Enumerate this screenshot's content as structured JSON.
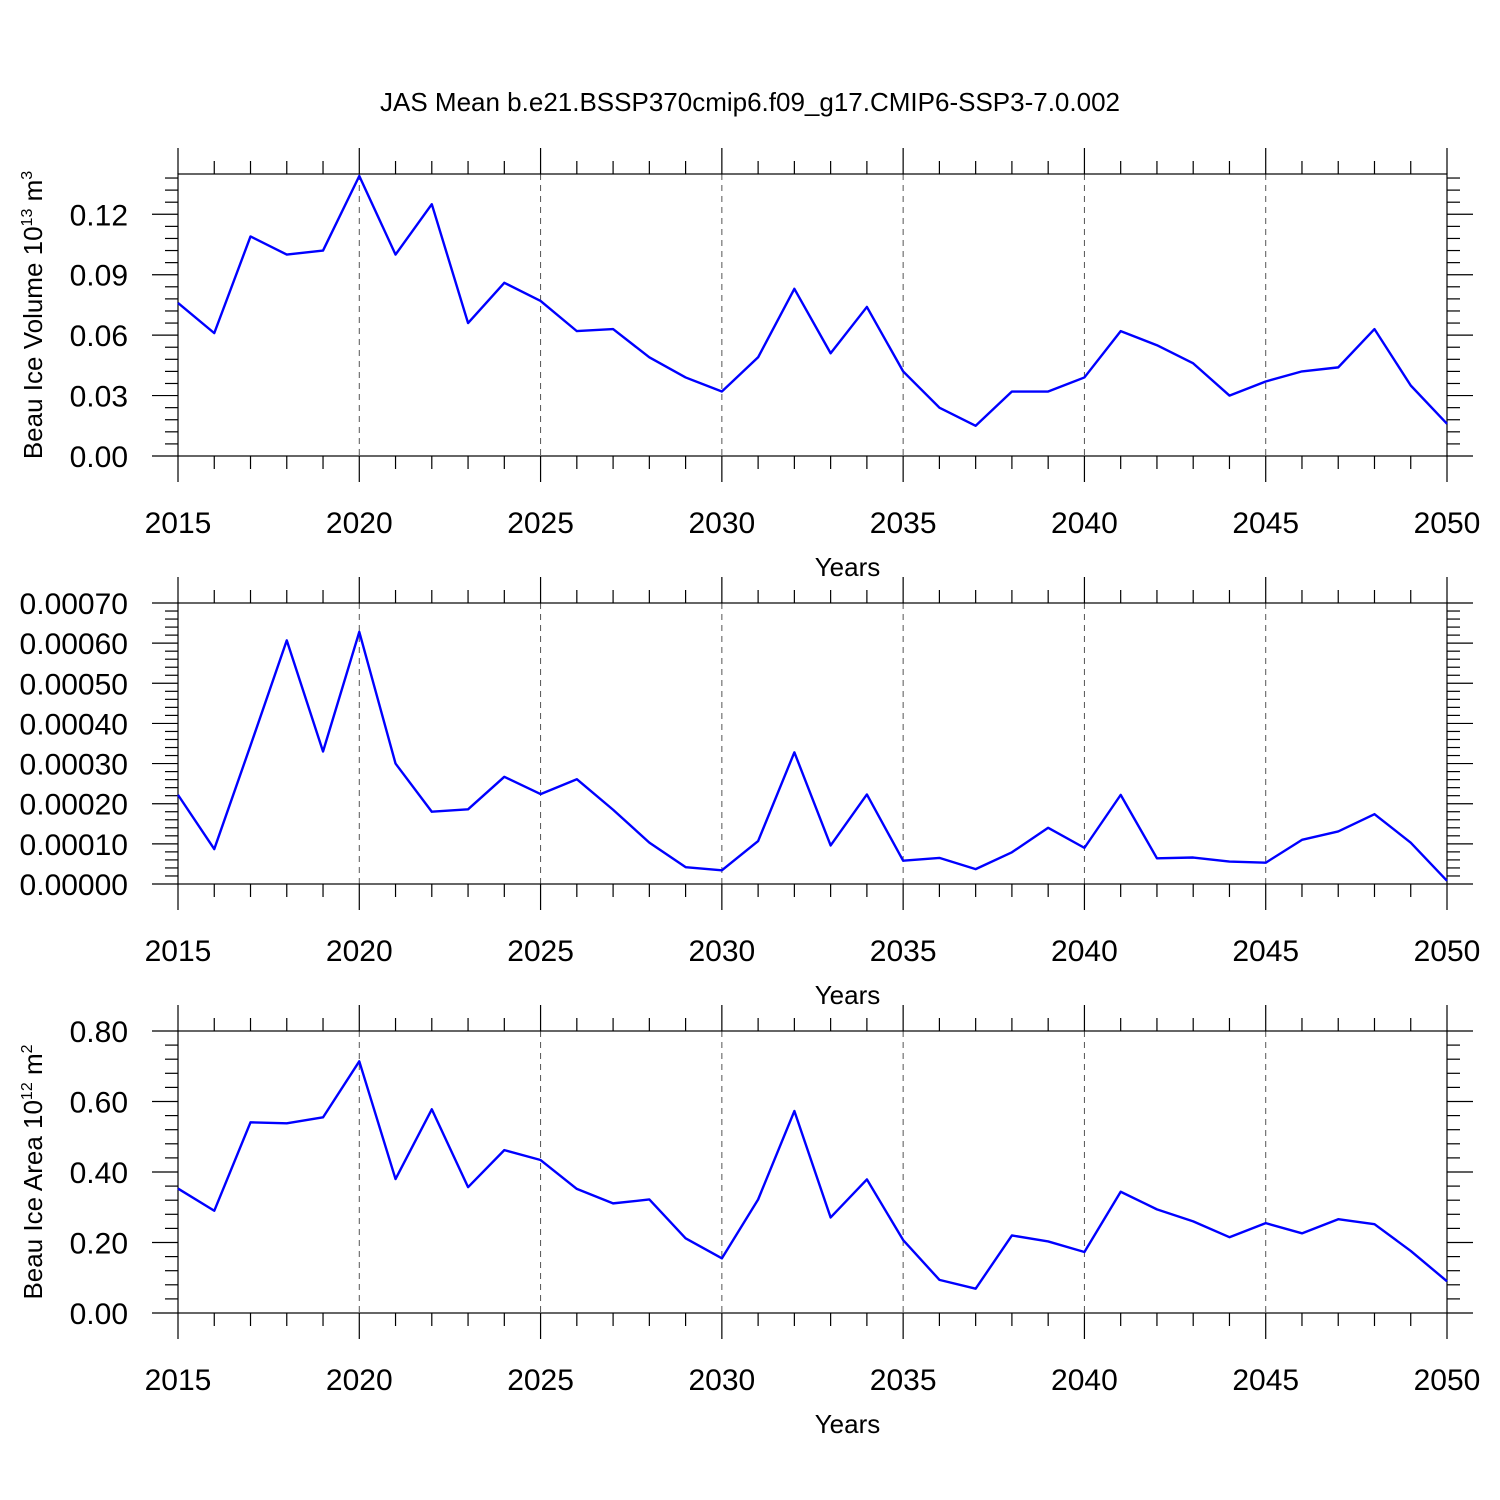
{
  "title": "JAS Mean b.e21.BSSP370cmip6.f09_g17.CMIP6-SSP3-7.0.002",
  "colors": {
    "line": "#0000ff",
    "axis": "#000000",
    "grid": "#555555"
  },
  "chart_data": [
    {
      "type": "line",
      "ylabel_main": "Beau Ice Volume 10",
      "ylabel_exp": "13",
      "ylabel_unit": " m",
      "ylabel_unit_exp": "3",
      "xlabel": "Years",
      "xlim": [
        2015,
        2050
      ],
      "ylim": [
        0,
        0.14
      ],
      "xticks": [
        2015,
        2020,
        2025,
        2030,
        2035,
        2040,
        2045,
        2050
      ],
      "xtick_labels": [
        "2015",
        "2020",
        "2025",
        "2030",
        "2035",
        "2040",
        "2045",
        "2050"
      ],
      "yticks": [
        0,
        0.03,
        0.06,
        0.09,
        0.12
      ],
      "ytick_labels": [
        "0.00",
        "0.03",
        "0.06",
        "0.09",
        "0.12"
      ],
      "grid": "vertical dashed",
      "x": [
        2015,
        2016,
        2017,
        2018,
        2019,
        2020,
        2021,
        2022,
        2023,
        2024,
        2025,
        2026,
        2027,
        2028,
        2029,
        2030,
        2031,
        2032,
        2033,
        2034,
        2035,
        2036,
        2037,
        2038,
        2039,
        2040,
        2041,
        2042,
        2043,
        2044,
        2045,
        2046,
        2047,
        2048,
        2049,
        2050
      ],
      "series": [
        {
          "values": [
            0.076,
            0.061,
            0.109,
            0.1,
            0.102,
            0.139,
            0.1,
            0.125,
            0.066,
            0.086,
            0.077,
            0.062,
            0.063,
            0.049,
            0.039,
            0.032,
            0.049,
            0.083,
            0.051,
            0.074,
            0.042,
            0.024,
            0.015,
            0.032,
            0.032,
            0.039,
            0.062,
            0.055,
            0.046,
            0.03,
            0.037,
            0.042,
            0.044,
            0.063,
            0.035,
            0.016
          ]
        }
      ]
    },
    {
      "type": "line",
      "xlabel": "Years",
      "xlim": [
        2015,
        2050
      ],
      "ylim": [
        0,
        0.0007
      ],
      "xticks": [
        2015,
        2020,
        2025,
        2030,
        2035,
        2040,
        2045,
        2050
      ],
      "xtick_labels": [
        "2015",
        "2020",
        "2025",
        "2030",
        "2035",
        "2040",
        "2045",
        "2050"
      ],
      "yticks": [
        0,
        0.0001,
        0.0002,
        0.0003,
        0.0004,
        0.0005,
        0.0006,
        0.0007
      ],
      "ytick_labels": [
        "0.00000",
        "0.00010",
        "0.00020",
        "0.00030",
        "0.00040",
        "0.00050",
        "0.00060",
        "0.00070"
      ],
      "grid": "vertical dashed",
      "x": [
        2015,
        2016,
        2017,
        2018,
        2019,
        2020,
        2021,
        2022,
        2023,
        2024,
        2025,
        2026,
        2027,
        2028,
        2029,
        2030,
        2031,
        2032,
        2033,
        2034,
        2035,
        2036,
        2037,
        2038,
        2039,
        2040,
        2041,
        2042,
        2043,
        2044,
        2045,
        2046,
        2047,
        2048,
        2049,
        2050
      ],
      "series": [
        {
          "values": [
            0.000222,
            8.7e-05,
            0.000345,
            0.000607,
            0.00033,
            0.000628,
            0.0003,
            0.00018,
            0.000186,
            0.000267,
            0.000224,
            0.000261,
            0.000185,
            0.000103,
            4.2e-05,
            3.4e-05,
            0.000107,
            0.000328,
            9.6e-05,
            0.000223,
            5.8e-05,
            6.5e-05,
            3.7e-05,
            7.9e-05,
            0.00014,
            9e-05,
            0.000222,
            6.4e-05,
            6.6e-05,
            5.6e-05,
            5.3e-05,
            0.00011,
            0.000131,
            0.000174,
            0.000103,
            8e-06
          ]
        }
      ]
    },
    {
      "type": "line",
      "ylabel_main": "Beau Ice Area 10",
      "ylabel_exp": "12",
      "ylabel_unit": " m",
      "ylabel_unit_exp": "2",
      "xlabel": "Years",
      "xlim": [
        2015,
        2050
      ],
      "ylim": [
        0,
        0.8
      ],
      "xticks": [
        2015,
        2020,
        2025,
        2030,
        2035,
        2040,
        2045,
        2050
      ],
      "xtick_labels": [
        "2015",
        "2020",
        "2025",
        "2030",
        "2035",
        "2040",
        "2045",
        "2050"
      ],
      "yticks": [
        0,
        0.2,
        0.4,
        0.6,
        0.8
      ],
      "ytick_labels": [
        "0.00",
        "0.20",
        "0.40",
        "0.60",
        "0.80"
      ],
      "grid": "vertical dashed",
      "x": [
        2015,
        2016,
        2017,
        2018,
        2019,
        2020,
        2021,
        2022,
        2023,
        2024,
        2025,
        2026,
        2027,
        2028,
        2029,
        2030,
        2031,
        2032,
        2033,
        2034,
        2035,
        2036,
        2037,
        2038,
        2039,
        2040,
        2041,
        2042,
        2043,
        2044,
        2045,
        2046,
        2047,
        2048,
        2049,
        2050
      ],
      "series": [
        {
          "values": [
            0.353,
            0.29,
            0.541,
            0.538,
            0.555,
            0.714,
            0.38,
            0.578,
            0.357,
            0.462,
            0.434,
            0.352,
            0.311,
            0.322,
            0.212,
            0.155,
            0.322,
            0.573,
            0.271,
            0.379,
            0.207,
            0.094,
            0.069,
            0.22,
            0.203,
            0.173,
            0.344,
            0.294,
            0.26,
            0.215,
            0.255,
            0.226,
            0.266,
            0.252,
            0.176,
            0.09
          ]
        }
      ]
    }
  ]
}
